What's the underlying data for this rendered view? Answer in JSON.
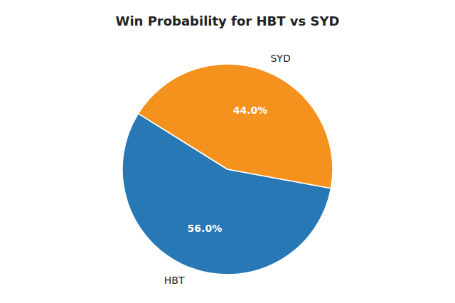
{
  "chart_data": {
    "type": "pie",
    "title": "Win Probability for HBT vs SYD",
    "categories": [
      "HBT",
      "SYD"
    ],
    "values": [
      56.0,
      44.0
    ],
    "value_labels": [
      "56.0%",
      "44.0%"
    ],
    "colors": [
      "#2878b5",
      "#f5921e"
    ],
    "data_labels": true
  }
}
